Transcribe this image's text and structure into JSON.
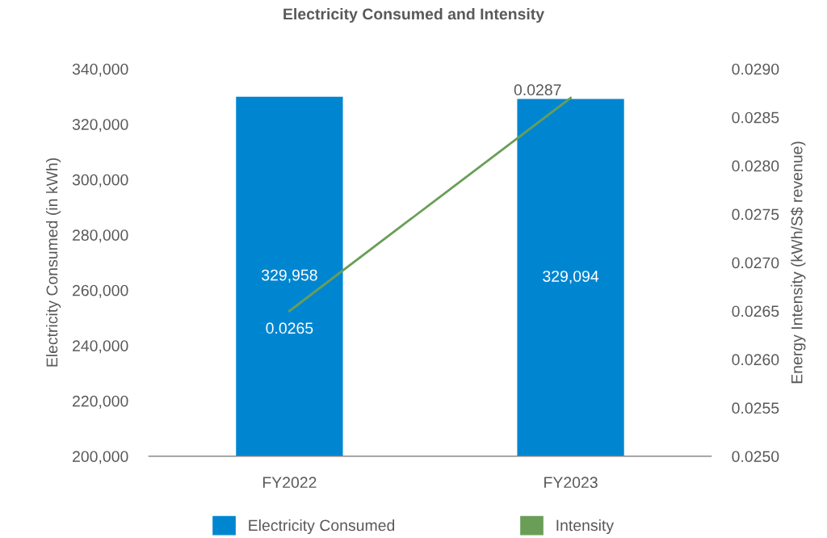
{
  "chart_data": {
    "type": "bar",
    "title": "Electricity Consumed and Intensity",
    "categories": [
      "FY2022",
      "FY2023"
    ],
    "series": [
      {
        "name": "Electricity Consumed",
        "color": "#0086d1",
        "values": [
          329958,
          329094
        ],
        "value_labels": [
          "329,958",
          "329,094"
        ]
      },
      {
        "name": "Intensity",
        "type": "line",
        "axis": "y2",
        "color": "#6a9e57",
        "values": [
          0.0265,
          0.0287
        ],
        "value_labels": [
          "0.0265",
          "0.0287"
        ]
      }
    ],
    "ylabel": "Electricity Consumed (in kWh)",
    "y2label": "Energy Intensity (kWh/S$ revenue)",
    "ylim": [
      200000,
      340000
    ],
    "yticks": [
      {
        "value": 200000,
        "label": "200,000"
      },
      {
        "value": 220000,
        "label": "220,000"
      },
      {
        "value": 240000,
        "label": "240,000"
      },
      {
        "value": 260000,
        "label": "260,000"
      },
      {
        "value": 280000,
        "label": "280,000"
      },
      {
        "value": 300000,
        "label": "300,000"
      },
      {
        "value": 320000,
        "label": "320,000"
      },
      {
        "value": 340000,
        "label": "340,000"
      }
    ],
    "y2lim": [
      0.025,
      0.029
    ],
    "y2ticks": [
      {
        "value": 0.025,
        "label": "0.0250"
      },
      {
        "value": 0.0255,
        "label": "0.0255"
      },
      {
        "value": 0.026,
        "label": "0.0260"
      },
      {
        "value": 0.0265,
        "label": "0.0265"
      },
      {
        "value": 0.027,
        "label": "0.0270"
      },
      {
        "value": 0.0275,
        "label": "0.0275"
      },
      {
        "value": 0.028,
        "label": "0.0280"
      },
      {
        "value": 0.0285,
        "label": "0.0285"
      },
      {
        "value": 0.029,
        "label": "0.0290"
      }
    ],
    "grid": false,
    "legend": "bottom",
    "marker": "none",
    "line_style": "solid"
  }
}
